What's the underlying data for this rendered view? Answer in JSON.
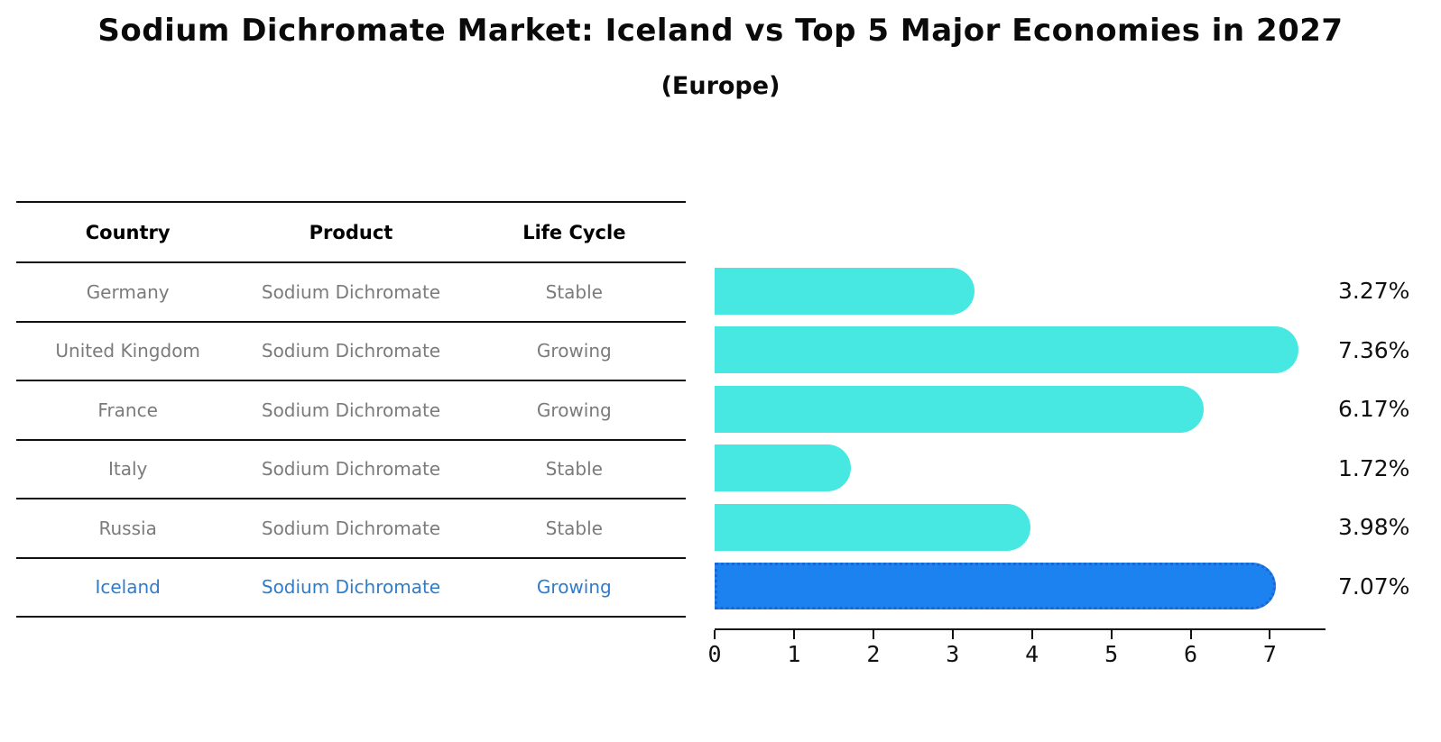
{
  "header": {
    "title": "Sodium Dichromate Market: Iceland vs Top 5 Major Economies in 2027",
    "subtitle": "(Europe)"
  },
  "table": {
    "columns": [
      "Country",
      "Product",
      "Life Cycle"
    ],
    "rows": [
      {
        "country": "Germany",
        "product": "Sodium Dichromate",
        "life_cycle": "Stable",
        "highlight": false
      },
      {
        "country": "United Kingdom",
        "product": "Sodium Dichromate",
        "life_cycle": "Growing",
        "highlight": false
      },
      {
        "country": "France",
        "product": "Sodium Dichromate",
        "life_cycle": "Growing",
        "highlight": false
      },
      {
        "country": "Italy",
        "product": "Sodium Dichromate",
        "life_cycle": "Stable",
        "highlight": false
      },
      {
        "country": "Russia",
        "product": "Sodium Dichromate",
        "life_cycle": "Stable",
        "highlight": false
      },
      {
        "country": "Iceland",
        "product": "Sodium Dichromate",
        "life_cycle": "Growing",
        "highlight": true
      }
    ]
  },
  "chart_data": {
    "type": "bar",
    "orientation": "horizontal",
    "title": "Sodium Dichromate Market: Iceland vs Top 5 Major Economies in 2027",
    "subtitle": "(Europe)",
    "categories": [
      "Germany",
      "United Kingdom",
      "France",
      "Italy",
      "Russia",
      "Iceland"
    ],
    "values": [
      3.27,
      7.36,
      6.17,
      1.72,
      3.98,
      7.07
    ],
    "value_labels": [
      "3.27%",
      "7.36%",
      "6.17%",
      "1.72%",
      "3.98%",
      "7.07%"
    ],
    "x_ticks": [
      0,
      1,
      2,
      3,
      4,
      5,
      6,
      7
    ],
    "xlim": [
      0,
      7.7
    ],
    "xlabel": "",
    "ylabel": "",
    "grid": false,
    "legend": null,
    "highlight_index": 5,
    "bar_color": "#47E8E1",
    "highlight_color": "#1B82F0",
    "highlight_border_color": "#2263CE",
    "text_colors": {
      "table_row_text": "#7b7b7b",
      "highlight_row_text": "#2F7CC8",
      "header_text": "#000000"
    }
  }
}
